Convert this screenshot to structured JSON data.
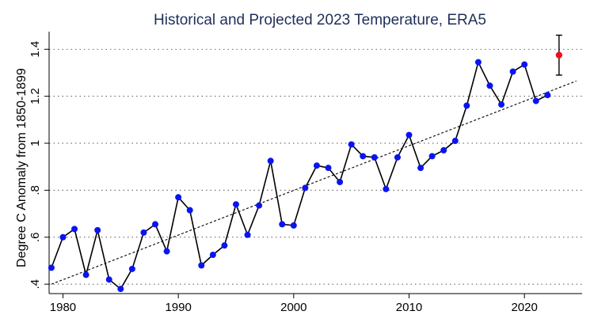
{
  "chart_data": {
    "type": "line",
    "title": "Historical and Projected 2023 Temperature, ERA5",
    "xlabel": "",
    "ylabel": "Degree C Anomaly from 1850-1899",
    "xlim": [
      1978.8,
      2025
    ],
    "ylim": [
      0.36,
      1.475
    ],
    "x_ticks": [
      1980,
      1990,
      2000,
      2010,
      2020
    ],
    "y_ticks": [
      0.4,
      0.6,
      0.8,
      1.0,
      1.2,
      1.4
    ],
    "y_tick_labels": [
      ".4",
      ".6",
      ".8",
      "1",
      "1.2",
      "1.4"
    ],
    "grid": "horizontal dotted",
    "legend": "none",
    "series": [
      {
        "x": [
          1979,
          1980,
          1981,
          1982,
          1983,
          1984,
          1985,
          1986,
          1987,
          1988,
          1989,
          1990,
          1991,
          1992,
          1993,
          1994,
          1995,
          1996,
          1997,
          1998,
          1999,
          2000,
          2001,
          2002,
          2003,
          2004,
          2005,
          2006,
          2007,
          2008,
          2009,
          2010,
          2011,
          2012,
          2013,
          2014,
          2015,
          2016,
          2017,
          2018,
          2019,
          2020,
          2021,
          2022
        ],
        "values": [
          0.47,
          0.6,
          0.635,
          0.44,
          0.63,
          0.42,
          0.38,
          0.465,
          0.62,
          0.655,
          0.54,
          0.77,
          0.715,
          0.48,
          0.525,
          0.565,
          0.74,
          0.61,
          0.735,
          0.925,
          0.655,
          0.65,
          0.81,
          0.905,
          0.895,
          0.835,
          0.995,
          0.945,
          0.94,
          0.805,
          0.94,
          1.035,
          0.895,
          0.945,
          0.97,
          1.01,
          1.16,
          1.345,
          1.245,
          1.165,
          1.305,
          1.335,
          1.18,
          1.205
        ]
      }
    ],
    "trend": {
      "x": [
        1979,
        2024.5
      ],
      "values": [
        0.4,
        1.265
      ]
    },
    "projection": {
      "x": 2023,
      "value": 1.375,
      "low": 1.29,
      "high": 1.46
    },
    "colors": {
      "title": "#1f2f5a",
      "points": "#0a14f2",
      "projection": "#e8101e",
      "line": "#000000"
    }
  }
}
